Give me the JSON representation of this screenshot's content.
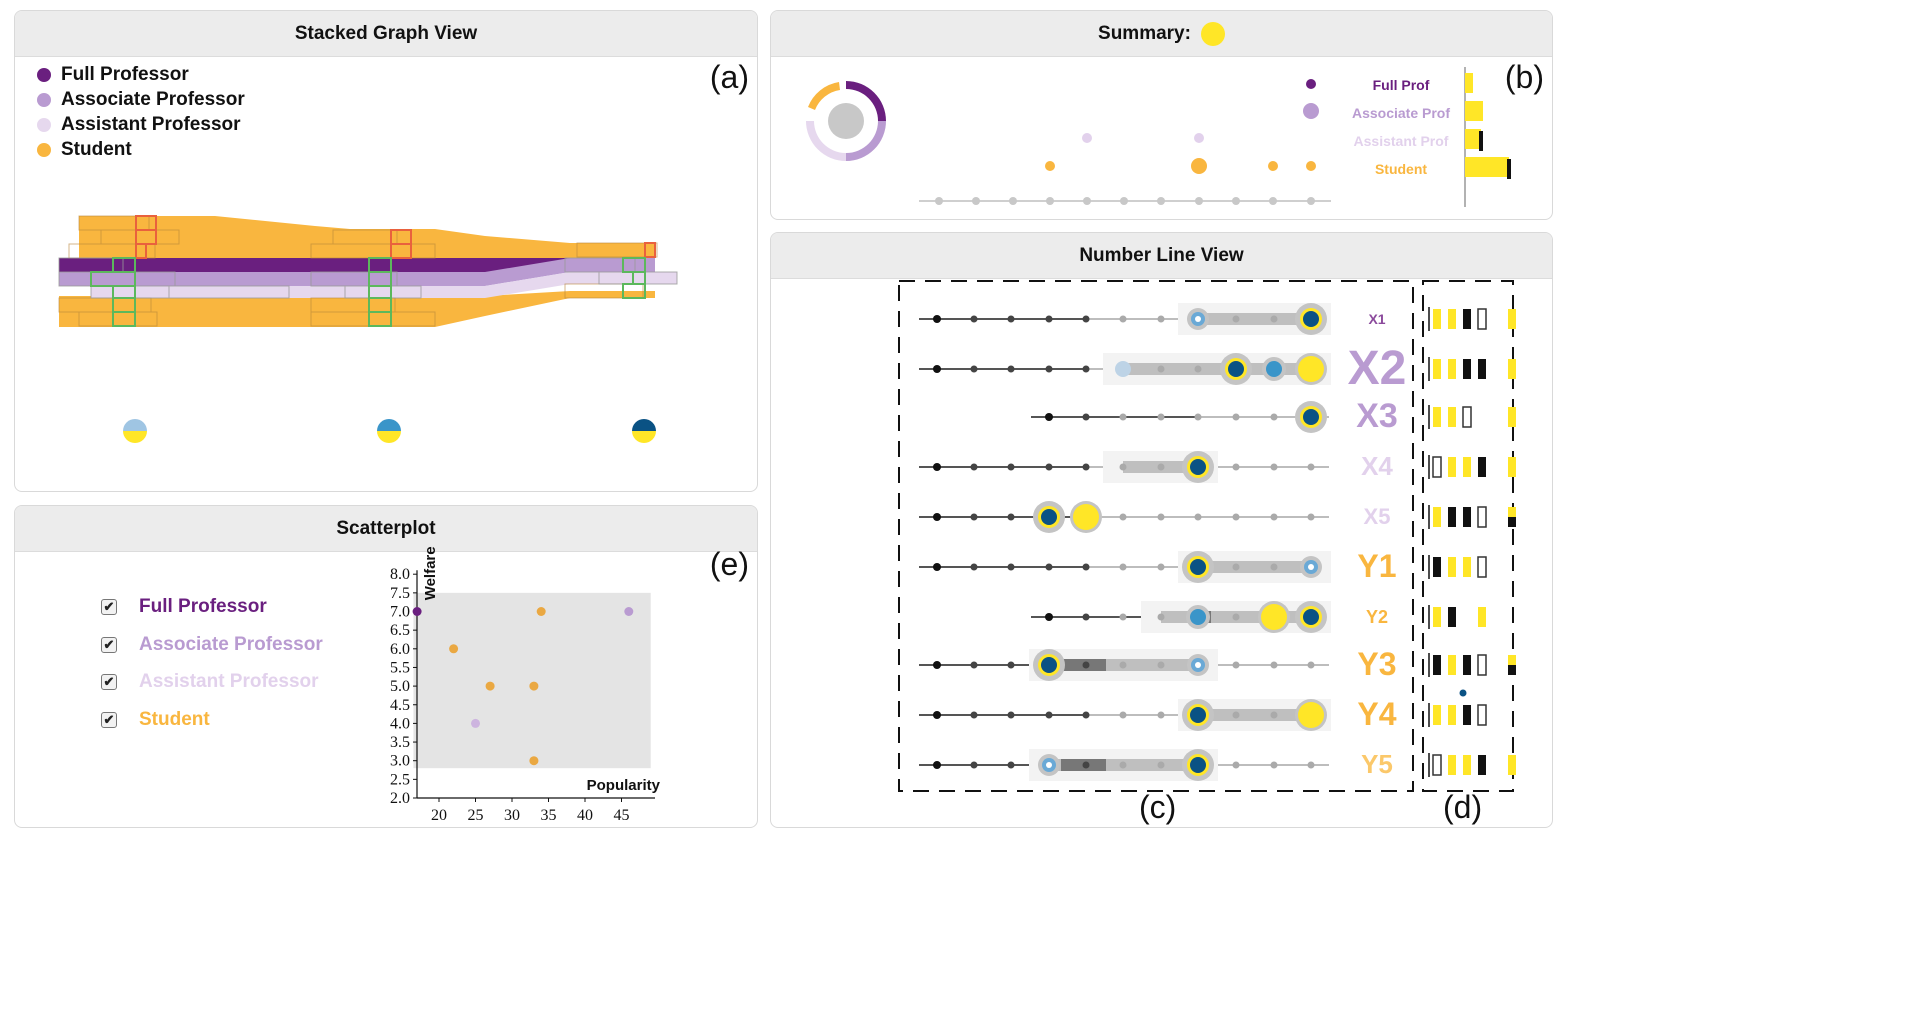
{
  "stacked": {
    "title": "Stacked Graph View",
    "label": "(a)",
    "legend": [
      {
        "name": "Full Professor",
        "color": "#6a1f7f"
      },
      {
        "name": "Associate Professor",
        "color": "#b99bd1"
      },
      {
        "name": "Assistant Professor",
        "color": "#e6d8ee"
      },
      {
        "name": "Student",
        "color": "#f9b63f"
      }
    ]
  },
  "summary": {
    "title": "Summary:",
    "label": "(b)",
    "rows": [
      {
        "name": "Full Prof",
        "color": "#6a1f7f",
        "bar": 0.15
      },
      {
        "name": "Associate Prof",
        "color": "#b99bd1",
        "bar": 0.35
      },
      {
        "name": "Assistant Prof",
        "color": "#e6d8ee",
        "bar": 0.3
      },
      {
        "name": "Student",
        "color": "#f9b63f",
        "bar": 0.85
      }
    ]
  },
  "numberline": {
    "title": "Number Line View",
    "label_c": "(c)",
    "label_d": "(d)",
    "rows": [
      {
        "name": "X1",
        "color": "#8b4a9c"
      },
      {
        "name": "X2",
        "color": "#b99bd1"
      },
      {
        "name": "X3",
        "color": "#b99bd1"
      },
      {
        "name": "X4",
        "color": "#e2d1ec"
      },
      {
        "name": "X5",
        "color": "#e2d1ec"
      },
      {
        "name": "Y1",
        "color": "#f9b63f"
      },
      {
        "name": "Y2",
        "color": "#f9b63f"
      },
      {
        "name": "Y3",
        "color": "#f9b63f"
      },
      {
        "name": "Y4",
        "color": "#f9b63f"
      },
      {
        "name": "Y5",
        "color": "#fbc86a"
      }
    ]
  },
  "scatter": {
    "title": "Scatterplot",
    "label": "(e)",
    "checkboxes": [
      {
        "name": "Full Professor",
        "color": "#6a1f7f"
      },
      {
        "name": "Associate Professor",
        "color": "#b99bd1"
      },
      {
        "name": "Assistant Professor",
        "color": "#e6d8ee"
      },
      {
        "name": "Student",
        "color": "#f9b63f"
      }
    ],
    "check_mark": "✔",
    "xlabel": "Popularity",
    "ylabel": "Welfare",
    "xticks": [
      "20",
      "25",
      "30",
      "35",
      "40",
      "45"
    ],
    "yticks": [
      "2.0",
      "2.5",
      "3.0",
      "3.5",
      "4.0",
      "4.5",
      "5.0",
      "5.5",
      "6.0",
      "6.5",
      "7.0",
      "7.5",
      "8.0"
    ],
    "points": [
      {
        "x": 17,
        "y": 7.0,
        "group": "Full Professor",
        "color": "#6a1f7f"
      },
      {
        "x": 46,
        "y": 7.0,
        "group": "Associate Professor",
        "color": "#b99bd1"
      },
      {
        "x": 25,
        "y": 4.0,
        "group": "Assistant Professor",
        "color": "#cdb4df"
      },
      {
        "x": 34,
        "y": 7.0,
        "group": "Student",
        "color": "#eaa842"
      },
      {
        "x": 22,
        "y": 6.0,
        "group": "Student",
        "color": "#eaa842"
      },
      {
        "x": 27,
        "y": 5.0,
        "group": "Student",
        "color": "#eaa842"
      },
      {
        "x": 33,
        "y": 5.0,
        "group": "Student",
        "color": "#eaa842"
      },
      {
        "x": 33,
        "y": 3.0,
        "group": "Student",
        "color": "#eaa842"
      }
    ]
  }
}
